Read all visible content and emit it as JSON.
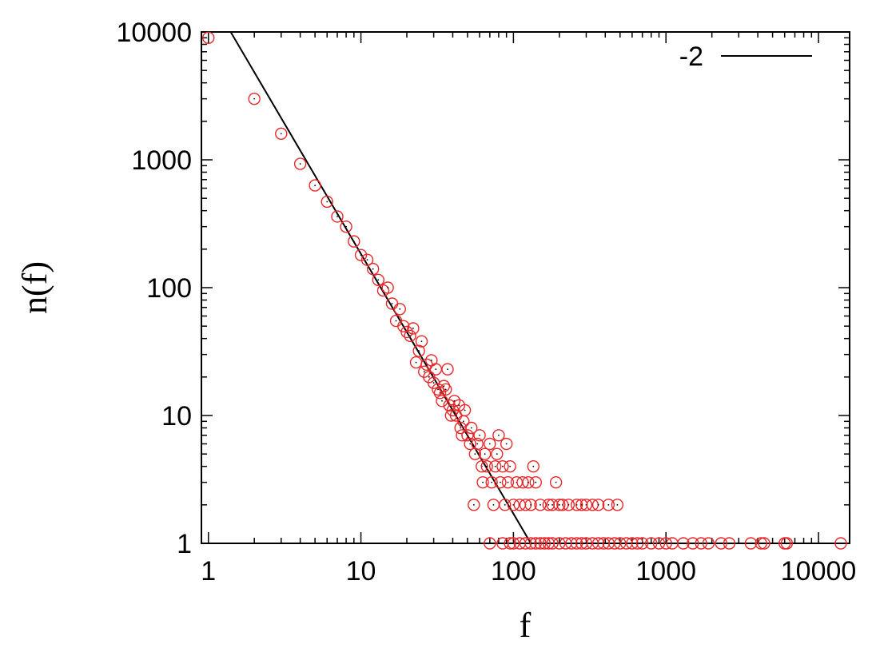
{
  "chart_data": {
    "type": "scatter",
    "title": "",
    "xlabel": "f",
    "ylabel": "n(f)",
    "x_scale": "log",
    "y_scale": "log",
    "xlim": [
      0.9,
      16000
    ],
    "ylim": [
      1,
      10000
    ],
    "grid": false,
    "legend_position": "top-right",
    "x_ticks": [
      {
        "value": 1,
        "label": "1"
      },
      {
        "value": 10,
        "label": "10"
      },
      {
        "value": 100,
        "label": "100"
      },
      {
        "value": 1000,
        "label": "1000"
      },
      {
        "value": 10000,
        "label": "10000"
      }
    ],
    "y_ticks": [
      {
        "value": 1,
        "label": "1"
      },
      {
        "value": 10,
        "label": "10"
      },
      {
        "value": 100,
        "label": "100"
      },
      {
        "value": 1000,
        "label": "1000"
      },
      {
        "value": 10000,
        "label": "10000"
      }
    ],
    "series": [
      {
        "marker": "circle",
        "color": "#e8272a",
        "points": [
          [
            1,
            9000
          ],
          [
            2,
            3000
          ],
          [
            3,
            1600
          ],
          [
            4,
            930
          ],
          [
            5,
            630
          ],
          [
            6,
            470
          ],
          [
            7,
            360
          ],
          [
            8,
            300
          ],
          [
            9,
            230
          ],
          [
            10,
            180
          ],
          [
            11,
            165
          ],
          [
            12,
            140
          ],
          [
            13,
            115
          ],
          [
            14,
            95
          ],
          [
            15,
            100
          ],
          [
            16,
            75
          ],
          [
            17,
            55
          ],
          [
            18,
            68
          ],
          [
            19,
            50
          ],
          [
            20,
            45
          ],
          [
            21,
            42
          ],
          [
            22,
            48
          ],
          [
            23,
            26
          ],
          [
            24,
            32
          ],
          [
            25,
            38
          ],
          [
            26,
            22
          ],
          [
            27,
            25
          ],
          [
            28,
            20
          ],
          [
            29,
            27
          ],
          [
            30,
            18
          ],
          [
            31,
            23
          ],
          [
            32,
            16
          ],
          [
            33,
            15
          ],
          [
            34,
            13
          ],
          [
            35,
            17
          ],
          [
            36,
            16
          ],
          [
            37,
            23
          ],
          [
            38,
            12
          ],
          [
            39,
            10
          ],
          [
            40,
            11
          ],
          [
            41,
            13
          ],
          [
            42,
            10
          ],
          [
            44,
            12
          ],
          [
            45,
            8
          ],
          [
            46,
            7
          ],
          [
            47,
            9
          ],
          [
            48,
            11
          ],
          [
            50,
            7
          ],
          [
            52,
            6
          ],
          [
            53,
            8
          ],
          [
            55,
            2
          ],
          [
            56,
            5
          ],
          [
            58,
            6
          ],
          [
            60,
            7
          ],
          [
            62,
            4
          ],
          [
            63,
            3
          ],
          [
            65,
            5
          ],
          [
            67,
            4
          ],
          [
            70,
            6
          ],
          [
            72,
            3
          ],
          [
            74,
            2
          ],
          [
            76,
            4
          ],
          [
            78,
            5
          ],
          [
            80,
            7
          ],
          [
            82,
            3
          ],
          [
            85,
            4
          ],
          [
            88,
            2
          ],
          [
            90,
            6
          ],
          [
            92,
            3
          ],
          [
            95,
            4
          ],
          [
            100,
            2
          ],
          [
            105,
            3
          ],
          [
            110,
            2
          ],
          [
            115,
            3
          ],
          [
            120,
            2
          ],
          [
            125,
            3
          ],
          [
            130,
            2
          ],
          [
            135,
            4
          ],
          [
            140,
            3
          ],
          [
            150,
            2
          ],
          [
            170,
            2
          ],
          [
            180,
            2
          ],
          [
            190,
            3
          ],
          [
            200,
            2
          ],
          [
            210,
            2
          ],
          [
            230,
            2
          ],
          [
            260,
            2
          ],
          [
            280,
            2
          ],
          [
            300,
            2
          ],
          [
            330,
            2
          ],
          [
            360,
            2
          ],
          [
            420,
            2
          ],
          [
            480,
            2
          ],
          [
            70,
            1
          ],
          [
            85,
            1
          ],
          [
            95,
            1
          ],
          [
            100,
            1
          ],
          [
            110,
            1
          ],
          [
            120,
            1
          ],
          [
            130,
            1
          ],
          [
            140,
            1
          ],
          [
            150,
            1
          ],
          [
            160,
            1
          ],
          [
            170,
            1
          ],
          [
            180,
            1
          ],
          [
            200,
            1
          ],
          [
            220,
            1
          ],
          [
            240,
            1
          ],
          [
            260,
            1
          ],
          [
            280,
            1
          ],
          [
            300,
            1
          ],
          [
            330,
            1
          ],
          [
            360,
            1
          ],
          [
            390,
            1
          ],
          [
            420,
            1
          ],
          [
            460,
            1
          ],
          [
            500,
            1
          ],
          [
            550,
            1
          ],
          [
            600,
            1
          ],
          [
            650,
            1
          ],
          [
            700,
            1
          ],
          [
            800,
            1
          ],
          [
            900,
            1
          ],
          [
            1000,
            1
          ],
          [
            1100,
            1
          ],
          [
            1300,
            1
          ],
          [
            1500,
            1
          ],
          [
            1700,
            1
          ],
          [
            1900,
            1
          ],
          [
            2300,
            1
          ],
          [
            2600,
            1
          ],
          [
            3600,
            1
          ],
          [
            4200,
            1
          ],
          [
            4400,
            1
          ],
          [
            6000,
            1
          ],
          [
            6200,
            1
          ],
          [
            14000,
            1
          ]
        ]
      }
    ],
    "reference_lines": [
      {
        "name": "-2",
        "color": "#000000",
        "x": [
          1.4,
          130
        ],
        "y": [
          10000,
          1
        ]
      }
    ]
  }
}
